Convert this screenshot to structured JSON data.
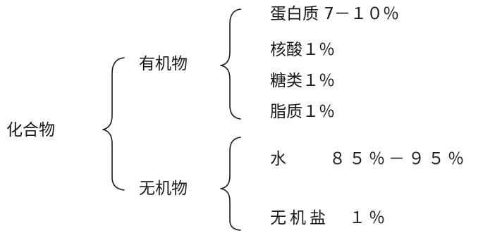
{
  "root": {
    "label": "化合物"
  },
  "categories": [
    {
      "label": "有机物",
      "items": [
        {
          "label": "蛋白质 7－１０％"
        },
        {
          "label": "核酸１％"
        },
        {
          "label": "糖类１％"
        },
        {
          "label": "脂质１％"
        }
      ]
    },
    {
      "label": "无机物",
      "items": [
        {
          "label": "水　　８５％－９５％"
        },
        {
          "label": "无机盐　１％"
        }
      ]
    }
  ],
  "colors": {
    "text": "#1a1a1a",
    "background": "#ffffff"
  }
}
